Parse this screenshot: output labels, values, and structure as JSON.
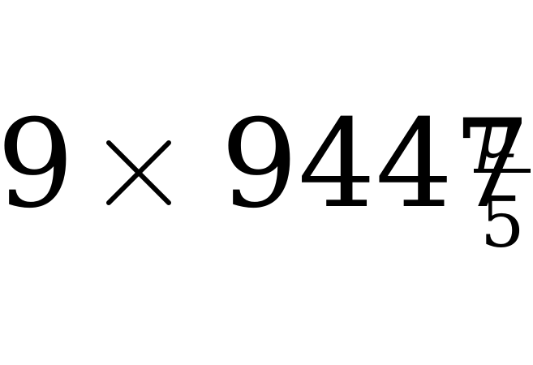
{
  "expression": {
    "multiplicand": "9",
    "operator": "×",
    "base": "9447",
    "exponent": {
      "numerator": "μ",
      "denominator": "5"
    }
  }
}
